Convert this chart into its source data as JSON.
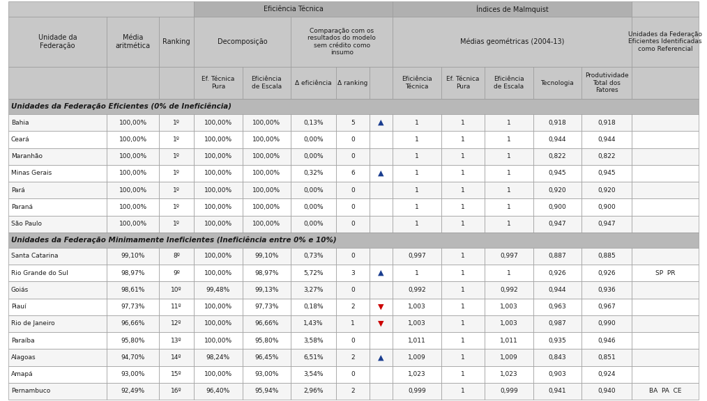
{
  "section1_label": "Unidades da Federação Eficientes (0% de Ineficiência)",
  "section2_label": "Unidades da Federação Minimamente Ineficientes (Ineficiência entre 0% e 10%)",
  "rows_section1": [
    [
      "Bahia",
      "100,00%",
      "1º",
      "100,00%",
      "100,00%",
      "0,13%",
      "5",
      "up_blue",
      "1",
      "1",
      "1",
      "0,918",
      "0,918",
      ""
    ],
    [
      "Ceará",
      "100,00%",
      "1º",
      "100,00%",
      "100,00%",
      "0,00%",
      "0",
      "",
      "1",
      "1",
      "1",
      "0,944",
      "0,944",
      ""
    ],
    [
      "Maranhão",
      "100,00%",
      "1º",
      "100,00%",
      "100,00%",
      "0,00%",
      "0",
      "",
      "1",
      "1",
      "1",
      "0,822",
      "0,822",
      ""
    ],
    [
      "Minas Gerais",
      "100,00%",
      "1º",
      "100,00%",
      "100,00%",
      "0,32%",
      "6",
      "up_blue",
      "1",
      "1",
      "1",
      "0,945",
      "0,945",
      ""
    ],
    [
      "Pará",
      "100,00%",
      "1º",
      "100,00%",
      "100,00%",
      "0,00%",
      "0",
      "",
      "1",
      "1",
      "1",
      "0,920",
      "0,920",
      ""
    ],
    [
      "Paraná",
      "100,00%",
      "1º",
      "100,00%",
      "100,00%",
      "0,00%",
      "0",
      "",
      "1",
      "1",
      "1",
      "0,900",
      "0,900",
      ""
    ],
    [
      "São Paulo",
      "100,00%",
      "1º",
      "100,00%",
      "100,00%",
      "0,00%",
      "0",
      "",
      "1",
      "1",
      "1",
      "0,947",
      "0,947",
      ""
    ]
  ],
  "rows_section2": [
    [
      "Santa Catarina",
      "99,10%",
      "8º",
      "100,00%",
      "99,10%",
      "0,73%",
      "0",
      "",
      "0,997",
      "1",
      "0,997",
      "0,887",
      "0,885",
      ""
    ],
    [
      "Rio Grande do Sul",
      "98,97%",
      "9º",
      "100,00%",
      "98,97%",
      "5,72%",
      "3",
      "up_blue",
      "1",
      "1",
      "1",
      "0,926",
      "0,926",
      "SP  PR"
    ],
    [
      "Goiás",
      "98,61%",
      "10º",
      "99,48%",
      "99,13%",
      "3,27%",
      "0",
      "",
      "0,992",
      "1",
      "0,992",
      "0,944",
      "0,936",
      ""
    ],
    [
      "Piauí",
      "97,73%",
      "11º",
      "100,00%",
      "97,73%",
      "0,18%",
      "2",
      "down_red",
      "1,003",
      "1",
      "1,003",
      "0,963",
      "0,967",
      ""
    ],
    [
      "Rio de Janeiro",
      "96,66%",
      "12º",
      "100,00%",
      "96,66%",
      "1,43%",
      "1",
      "down_red",
      "1,003",
      "1",
      "1,003",
      "0,987",
      "0,990",
      ""
    ],
    [
      "Paraíba",
      "95,80%",
      "13º",
      "100,00%",
      "95,80%",
      "3,58%",
      "0",
      "",
      "1,011",
      "1",
      "1,011",
      "0,935",
      "0,946",
      ""
    ],
    [
      "Alagoas",
      "94,70%",
      "14º",
      "98,24%",
      "96,45%",
      "6,51%",
      "2",
      "up_blue",
      "1,009",
      "1",
      "1,009",
      "0,843",
      "0,851",
      ""
    ],
    [
      "Amapá",
      "93,00%",
      "15º",
      "100,00%",
      "93,00%",
      "3,54%",
      "0",
      "",
      "1,023",
      "1",
      "1,023",
      "0,903",
      "0,924",
      ""
    ],
    [
      "Pernambuco",
      "92,49%",
      "16º",
      "96,40%",
      "95,94%",
      "2,96%",
      "2",
      "",
      "0,999",
      "1",
      "0,999",
      "0,941",
      "0,940",
      "BA  PA  CE"
    ]
  ],
  "bg_header": "#c8c8c8",
  "bg_header_dark": "#b0b0b0",
  "bg_row_even": "#f5f5f5",
  "bg_row_odd": "#ffffff",
  "bg_section_label": "#b8b8b8",
  "border_color": "#999999",
  "text_color": "#1a1a1a",
  "arrow_up_color": "#1a3d8f",
  "arrow_down_color": "#cc0000"
}
